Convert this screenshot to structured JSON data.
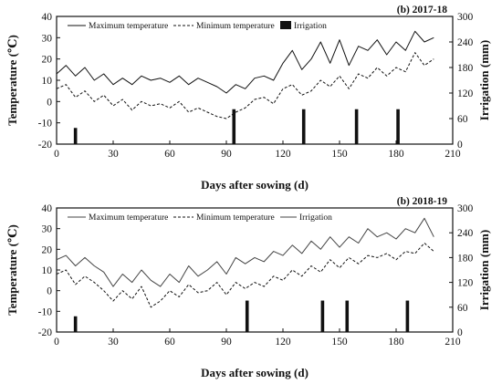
{
  "chart_data": [
    {
      "type": "line",
      "title": "(b) 2017-18",
      "xlabel": "Days after sowing (d)",
      "ylabel": "Temperature (℃)",
      "y2label": "Irrigation (mm)",
      "xlim": [
        0,
        210
      ],
      "xticks": [
        0,
        30,
        60,
        90,
        120,
        150,
        180,
        210
      ],
      "ylim": [
        -20,
        40
      ],
      "yticks": [
        -20,
        -10,
        0,
        10,
        20,
        30,
        40
      ],
      "y2lim": [
        0,
        300
      ],
      "y2ticks": [
        0,
        60,
        120,
        180,
        240,
        300
      ],
      "legend_position": "top",
      "legend": [
        "Maximum temperature",
        "Minimum temperature",
        "Irrigation"
      ],
      "series": [
        {
          "name": "Maximum temperature",
          "style": "solid",
          "x": [
            0,
            5,
            10,
            15,
            20,
            25,
            30,
            35,
            40,
            45,
            50,
            55,
            60,
            65,
            70,
            75,
            80,
            85,
            90,
            95,
            100,
            105,
            110,
            115,
            120,
            125,
            130,
            135,
            140,
            145,
            150,
            155,
            160,
            165,
            170,
            175,
            180,
            185,
            190,
            195,
            200
          ],
          "y": [
            13,
            17,
            12,
            16,
            10,
            13,
            8,
            11,
            8,
            12,
            10,
            11,
            9,
            12,
            8,
            11,
            9,
            7,
            4,
            8,
            6,
            11,
            12,
            10,
            18,
            24,
            15,
            20,
            28,
            18,
            29,
            17,
            26,
            24,
            29,
            22,
            28,
            24,
            33,
            28,
            30
          ]
        },
        {
          "name": "Minimum temperature",
          "style": "dashed",
          "x": [
            0,
            5,
            10,
            15,
            20,
            25,
            30,
            35,
            40,
            45,
            50,
            55,
            60,
            65,
            70,
            75,
            80,
            85,
            90,
            95,
            100,
            105,
            110,
            115,
            120,
            125,
            130,
            135,
            140,
            145,
            150,
            155,
            160,
            165,
            170,
            175,
            180,
            185,
            190,
            195,
            200
          ],
          "y": [
            6,
            8,
            2,
            5,
            0,
            3,
            -2,
            1,
            -4,
            0,
            -2,
            -1,
            -3,
            0,
            -5,
            -3,
            -5,
            -7,
            -8,
            -5,
            -3,
            1,
            2,
            -1,
            6,
            8,
            3,
            5,
            10,
            7,
            12,
            6,
            13,
            11,
            16,
            12,
            16,
            14,
            23,
            17,
            20
          ]
        },
        {
          "name": "Irrigation",
          "style": "bar",
          "x": [
            10,
            94,
            131,
            159,
            181
          ],
          "y": [
            38,
            82,
            82,
            82,
            82
          ]
        }
      ]
    },
    {
      "type": "line",
      "title": "(b) 2018-19",
      "xlabel": "Days after sowing (d)",
      "ylabel": "Temperature (℃)",
      "y2label": "Irrigation (mm)",
      "xlim": [
        0,
        210
      ],
      "xticks": [
        0,
        30,
        60,
        90,
        120,
        150,
        180,
        210
      ],
      "ylim": [
        -20,
        40
      ],
      "yticks": [
        -20,
        -10,
        0,
        10,
        20,
        30,
        40
      ],
      "y2lim": [
        0,
        300
      ],
      "y2ticks": [
        0,
        60,
        120,
        180,
        240,
        300
      ],
      "legend_position": "top",
      "legend": [
        "Maximum temperature",
        "Minimum temperature",
        "Irrigation"
      ],
      "series": [
        {
          "name": "Maximum temperature",
          "style": "solid",
          "x": [
            0,
            5,
            10,
            15,
            20,
            25,
            30,
            35,
            40,
            45,
            50,
            55,
            60,
            65,
            70,
            75,
            80,
            85,
            90,
            95,
            100,
            105,
            110,
            115,
            120,
            125,
            130,
            135,
            140,
            145,
            150,
            155,
            160,
            165,
            170,
            175,
            180,
            185,
            190,
            195,
            200
          ],
          "y": [
            15,
            17,
            12,
            16,
            12,
            9,
            2,
            8,
            4,
            10,
            5,
            2,
            8,
            4,
            12,
            7,
            10,
            14,
            8,
            16,
            13,
            16,
            14,
            19,
            17,
            22,
            18,
            24,
            20,
            26,
            21,
            26,
            23,
            30,
            26,
            28,
            25,
            30,
            28,
            35,
            26
          ]
        },
        {
          "name": "Minimum temperature",
          "style": "dashed",
          "x": [
            0,
            5,
            10,
            15,
            20,
            25,
            30,
            35,
            40,
            45,
            50,
            55,
            60,
            65,
            70,
            75,
            80,
            85,
            90,
            95,
            100,
            105,
            110,
            115,
            120,
            125,
            130,
            135,
            140,
            145,
            150,
            155,
            160,
            165,
            170,
            175,
            180,
            185,
            190,
            195,
            200
          ],
          "y": [
            8,
            10,
            3,
            7,
            4,
            0,
            -5,
            0,
            -4,
            2,
            -8,
            -5,
            0,
            -3,
            3,
            -1,
            0,
            4,
            -2,
            4,
            1,
            4,
            2,
            7,
            5,
            10,
            7,
            12,
            9,
            15,
            11,
            16,
            13,
            17,
            16,
            18,
            15,
            19,
            18,
            23,
            19
          ]
        },
        {
          "name": "Irrigation",
          "style": "bar",
          "x": [
            10,
            101,
            141,
            154,
            186
          ],
          "y": [
            38,
            76,
            76,
            76,
            76
          ]
        }
      ]
    }
  ]
}
